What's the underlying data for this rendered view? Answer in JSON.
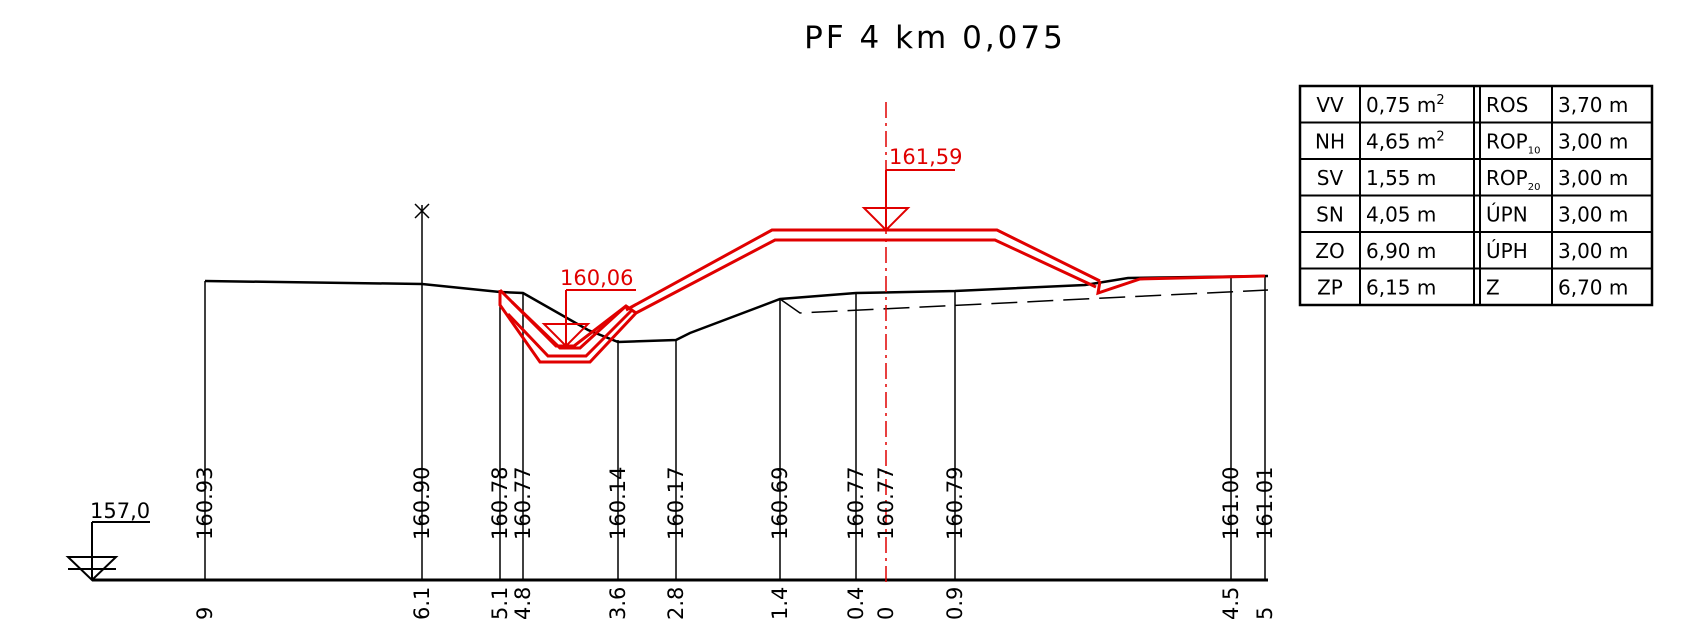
{
  "title": "PF 4 km 0,075",
  "datum": "157,0",
  "levels": {
    "top": "161,59",
    "ditch": "160,06"
  },
  "colors": {
    "terrain": "#000000",
    "design": "#e00000"
  },
  "stations": [
    {
      "dist": "9",
      "elev": "160.93"
    },
    {
      "dist": "6.1",
      "elev": "160.90"
    },
    {
      "dist": "5.1",
      "elev": "160.78"
    },
    {
      "dist": "4.8",
      "elev": "160.77"
    },
    {
      "dist": "3.6",
      "elev": "160.14"
    },
    {
      "dist": "2.8",
      "elev": "160.17"
    },
    {
      "dist": "1.4",
      "elev": "160.69"
    },
    {
      "dist": "0.4",
      "elev": "160.77"
    },
    {
      "dist": "0",
      "elev": "160.77"
    },
    {
      "dist": "0.9",
      "elev": "160.79"
    },
    {
      "dist": "4.5",
      "elev": "161.00"
    },
    {
      "dist": "5",
      "elev": "161.01"
    }
  ],
  "table": [
    {
      "k1": "VV",
      "v1": "0,75 m",
      "s1": "2",
      "k2": "ROS",
      "k2sub": "",
      "v2": "3,70 m"
    },
    {
      "k1": "NH",
      "v1": "4,65 m",
      "s1": "2",
      "k2": "ROP",
      "k2sub": "10",
      "v2": "3,00 m"
    },
    {
      "k1": "SV",
      "v1": "1,55 m",
      "s1": "",
      "k2": "ROP",
      "k2sub": "20",
      "v2": "3,00 m"
    },
    {
      "k1": "SN",
      "v1": "4,05 m",
      "s1": "",
      "k2": "ÚPN",
      "k2sub": "",
      "v2": "3,00 m"
    },
    {
      "k1": "ZO",
      "v1": "6,90 m",
      "s1": "",
      "k2": "ÚPH",
      "k2sub": "",
      "v2": "3,00 m"
    },
    {
      "k1": "ZP",
      "v1": "6,15 m",
      "s1": "",
      "k2": "Z",
      "k2sub": "",
      "v2": "6,70 m"
    }
  ]
}
